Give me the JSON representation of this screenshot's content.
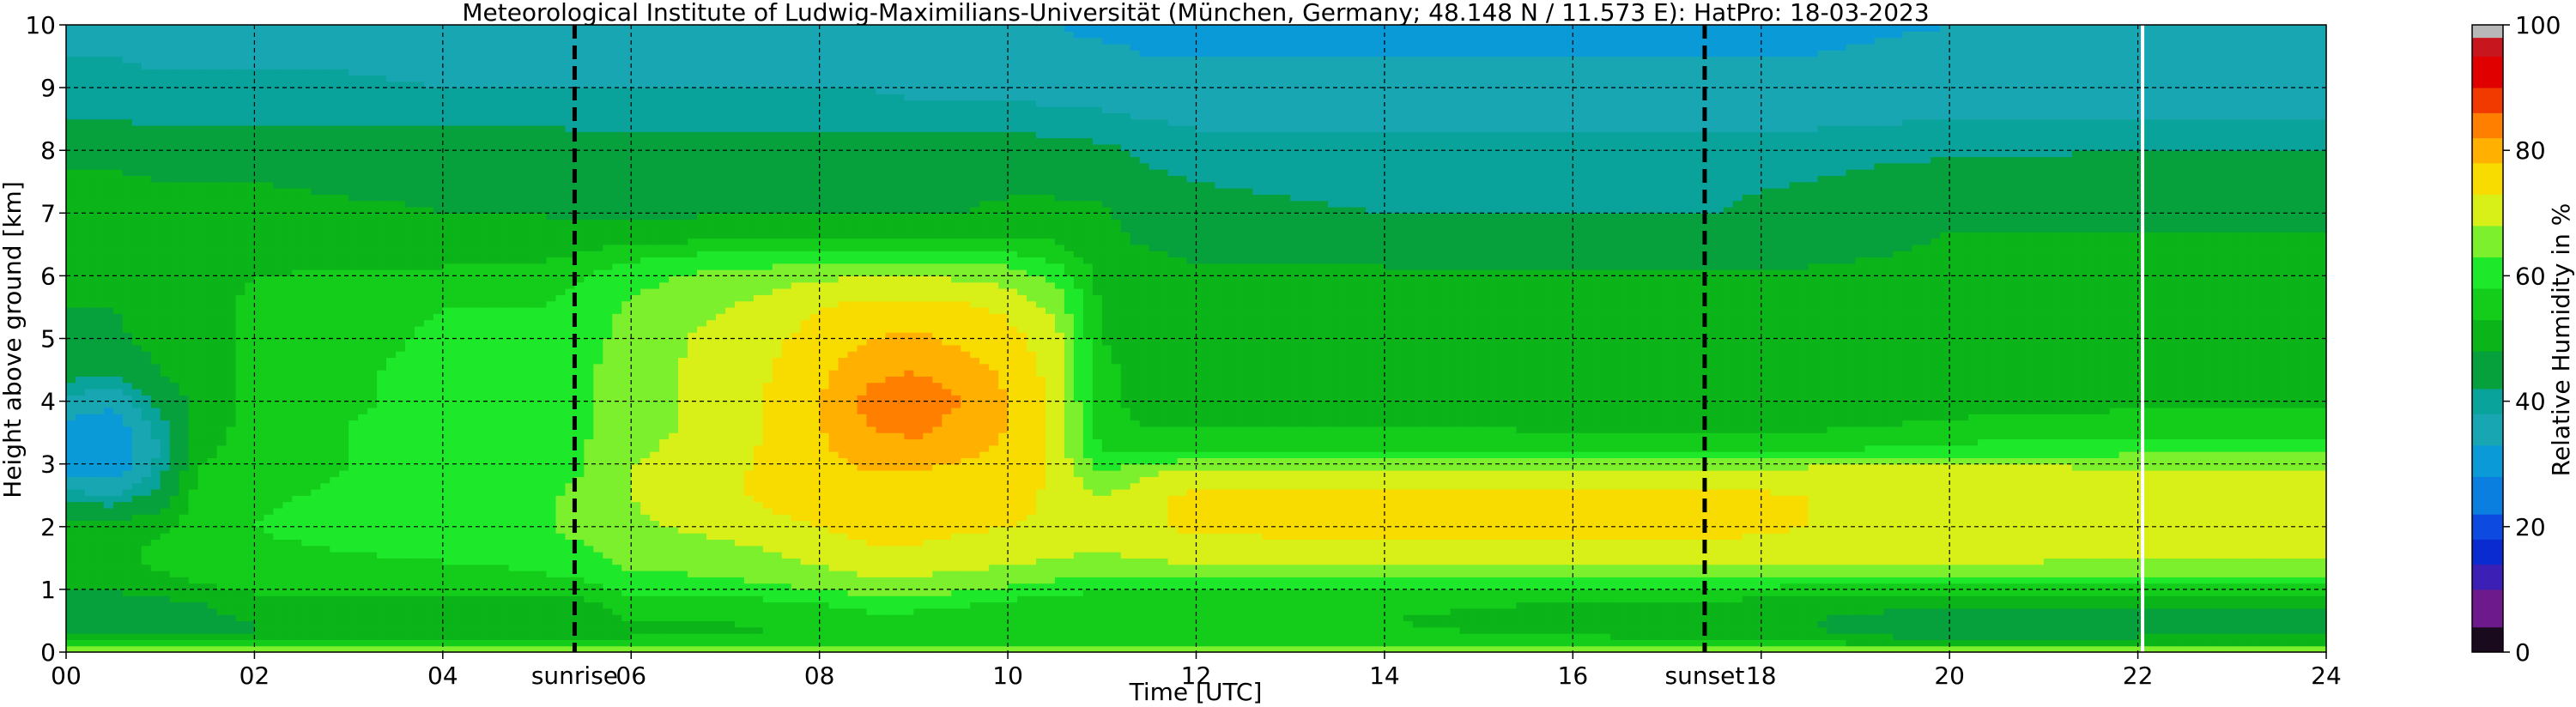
{
  "chart_data": {
    "type": "heatmap",
    "title": "Meteorological Institute of Ludwig-Maximilians-Universität (München, Germany; 48.148 N / 11.573 E):    HatPro: 18-03-2023",
    "xlabel": "Time [UTC]",
    "ylabel": "Height above ground [km]",
    "colorbar_label": "Relative Humidity in %",
    "xlim": [
      0,
      24
    ],
    "ylim": [
      0,
      10
    ],
    "zlim": [
      0,
      100
    ],
    "x_ticks": [
      0,
      2,
      4,
      6,
      8,
      10,
      12,
      14,
      16,
      18,
      20,
      22,
      24
    ],
    "x_tick_labels": [
      "00",
      "02",
      "04",
      "06",
      "08",
      "10",
      "12",
      "14",
      "16",
      "18",
      "20",
      "22",
      "24"
    ],
    "y_ticks": [
      0,
      1,
      2,
      3,
      4,
      5,
      6,
      7,
      8,
      9,
      10
    ],
    "y_tick_labels": [
      "0",
      "1",
      "2",
      "3",
      "4",
      "5",
      "6",
      "7",
      "8",
      "9",
      "10"
    ],
    "colorbar_ticks": [
      0,
      20,
      40,
      60,
      80,
      100
    ],
    "colorbar_tick_labels": [
      "0",
      "20",
      "40",
      "60",
      "80",
      "100"
    ],
    "grid": true,
    "events": [
      {
        "label": "sunrise",
        "time": 5.4
      },
      {
        "label": "sunset",
        "time": 17.4
      }
    ],
    "data_gap_time": 22.05,
    "colormap": [
      {
        "from": 0,
        "to": 4,
        "color": "#1a0a1e"
      },
      {
        "from": 4,
        "to": 10,
        "color": "#6c1a8c"
      },
      {
        "from": 10,
        "to": 14,
        "color": "#3c1fb4"
      },
      {
        "from": 14,
        "to": 18,
        "color": "#0a2bd0"
      },
      {
        "from": 18,
        "to": 22,
        "color": "#0d4ae0"
      },
      {
        "from": 22,
        "to": 28,
        "color": "#0b7fe0"
      },
      {
        "from": 28,
        "to": 33,
        "color": "#0a9ad8"
      },
      {
        "from": 33,
        "to": 38,
        "color": "#18a6b2"
      },
      {
        "from": 38,
        "to": 42,
        "color": "#0aa39b"
      },
      {
        "from": 42,
        "to": 48,
        "color": "#06a03c"
      },
      {
        "from": 48,
        "to": 53,
        "color": "#0bb419"
      },
      {
        "from": 53,
        "to": 58,
        "color": "#14cc1a"
      },
      {
        "from": 58,
        "to": 63,
        "color": "#1ee82a"
      },
      {
        "from": 63,
        "to": 68,
        "color": "#7cf02c"
      },
      {
        "from": 68,
        "to": 73,
        "color": "#d8f018"
      },
      {
        "from": 73,
        "to": 78,
        "color": "#f8dc00"
      },
      {
        "from": 78,
        "to": 82,
        "color": "#ffb000"
      },
      {
        "from": 82,
        "to": 86,
        "color": "#ff7f00"
      },
      {
        "from": 86,
        "to": 90,
        "color": "#f03a00"
      },
      {
        "from": 90,
        "to": 95,
        "color": "#e00000"
      },
      {
        "from": 95,
        "to": 98,
        "color": "#c8161e"
      },
      {
        "from": 98,
        "to": 100,
        "color": "#b8b8b8"
      }
    ],
    "rh_profiles": {
      "heights_km": [
        0,
        0.1,
        0.3,
        0.5,
        0.8,
        1.0,
        1.3,
        1.6,
        2.0,
        2.5,
        2.9,
        3.2,
        3.6,
        4.0,
        4.5,
        5.0,
        5.5,
        6.0,
        6.3,
        6.7,
        7.0,
        7.5,
        8.0,
        8.5,
        9.0,
        9.5,
        10.0
      ],
      "times_h": [
        0,
        0.5,
        1.0,
        1.4,
        2,
        3,
        4,
        5,
        5.5,
        6,
        7,
        7.5,
        8,
        8.5,
        9,
        9.5,
        10,
        10.5,
        11,
        11.5,
        12,
        14,
        16,
        17.5,
        18.5,
        20,
        22,
        24
      ],
      "rh_percent": [
        [
          74,
          55,
          47,
          45,
          46,
          48,
          52,
          52,
          50,
          40,
          32,
          30,
          32,
          36,
          45,
          48,
          48,
          50,
          51,
          51,
          51,
          49,
          46,
          42,
          40,
          38,
          36
        ],
        [
          74,
          55,
          47,
          45,
          46,
          48,
          52,
          52,
          50,
          38,
          30,
          28,
          30,
          34,
          44,
          47,
          48,
          50,
          51,
          51,
          51,
          49,
          46,
          42,
          40,
          38,
          36
        ],
        [
          74,
          55,
          47,
          46,
          47,
          50,
          53,
          54,
          52,
          44,
          40,
          38,
          40,
          44,
          48,
          50,
          50,
          51,
          51,
          51,
          50,
          48,
          45,
          41,
          39,
          37,
          35
        ],
        [
          74,
          55,
          47,
          47,
          48,
          52,
          55,
          56,
          56,
          55,
          53,
          52,
          50,
          50,
          51,
          51,
          51,
          51,
          51,
          51,
          50,
          48,
          45,
          41,
          39,
          37,
          35
        ],
        [
          74,
          55,
          48,
          48,
          50,
          54,
          56,
          57,
          58,
          57,
          56,
          55,
          55,
          54,
          54,
          54,
          54,
          53,
          51,
          50,
          50,
          48,
          45,
          41,
          39,
          37,
          35
        ],
        [
          74,
          55,
          48,
          48,
          50,
          54,
          56,
          58,
          60,
          59,
          58,
          58,
          58,
          57,
          57,
          56,
          56,
          54,
          51,
          49,
          49,
          47,
          45,
          41,
          39,
          37,
          35
        ],
        [
          74,
          55,
          48,
          48,
          50,
          55,
          57,
          59,
          61,
          62,
          61,
          61,
          61,
          60,
          60,
          59,
          58,
          55,
          51,
          49,
          48,
          47,
          45,
          41,
          38,
          36,
          35
        ],
        [
          74,
          55,
          48,
          49,
          51,
          55,
          58,
          60,
          62,
          62,
          61,
          61,
          60,
          60,
          60,
          59,
          58,
          55,
          52,
          49,
          48,
          46,
          45,
          41,
          38,
          36,
          35
        ],
        [
          74,
          56,
          50,
          50,
          52,
          56,
          60,
          62,
          65,
          64,
          63,
          63,
          62,
          62,
          62,
          61,
          60,
          58,
          54,
          49,
          47,
          46,
          44,
          41,
          38,
          36,
          35
        ],
        [
          74,
          56,
          52,
          53,
          56,
          60,
          63,
          65,
          67,
          68,
          68,
          67,
          66,
          66,
          66,
          65,
          64,
          61,
          57,
          49,
          47,
          46,
          44,
          40,
          38,
          36,
          34
        ],
        [
          74,
          56,
          52,
          53,
          56,
          60,
          64,
          66,
          70,
          72,
          72,
          71,
          70,
          70,
          70,
          70,
          68,
          65,
          60,
          50,
          48,
          46,
          44,
          40,
          38,
          36,
          34
        ],
        [
          74,
          57,
          53,
          54,
          57,
          62,
          66,
          68,
          72,
          74,
          74,
          74,
          74,
          74,
          73,
          72,
          70,
          66,
          60,
          50,
          48,
          47,
          44,
          40,
          38,
          36,
          34
        ],
        [
          74,
          58,
          54,
          55,
          58,
          63,
          67,
          70,
          73,
          75,
          76,
          77,
          78,
          78,
          77,
          75,
          73,
          67,
          60,
          50,
          48,
          47,
          45,
          40,
          38,
          35,
          34
        ],
        [
          74,
          58,
          55,
          56,
          60,
          65,
          69,
          72,
          75,
          77,
          78,
          80,
          82,
          83,
          81,
          78,
          75,
          68,
          60,
          50,
          48,
          47,
          45,
          40,
          38,
          35,
          33
        ],
        [
          74,
          58,
          55,
          56,
          60,
          65,
          69,
          72,
          75,
          77,
          78,
          81,
          83,
          84,
          82,
          79,
          75,
          68,
          60,
          50,
          48,
          47,
          45,
          40,
          37,
          35,
          33
        ],
        [
          74,
          57,
          54,
          55,
          59,
          64,
          68,
          71,
          74,
          76,
          77,
          79,
          81,
          82,
          80,
          77,
          74,
          67,
          60,
          50,
          48,
          47,
          45,
          40,
          37,
          35,
          33
        ],
        [
          74,
          57,
          53,
          54,
          57,
          62,
          67,
          70,
          73,
          75,
          76,
          77,
          78,
          78,
          77,
          75,
          72,
          66,
          60,
          51,
          49,
          47,
          45,
          40,
          37,
          35,
          33
        ],
        [
          74,
          57,
          53,
          54,
          56,
          60,
          66,
          69,
          72,
          72,
          72,
          72,
          72,
          72,
          71,
          70,
          67,
          62,
          56,
          51,
          49,
          47,
          44,
          39,
          36,
          34,
          33
        ],
        [
          74,
          57,
          53,
          53,
          54,
          58,
          64,
          68,
          70,
          68,
          62,
          58,
          55,
          54,
          54,
          53,
          52,
          51,
          50,
          50,
          49,
          46,
          43,
          39,
          36,
          34,
          32
        ],
        [
          74,
          58,
          54,
          54,
          55,
          58,
          65,
          70,
          72,
          72,
          67,
          57,
          53,
          51,
          51,
          51,
          51,
          51,
          49,
          46,
          45,
          43,
          41,
          38,
          35,
          33,
          32
        ],
        [
          74,
          58,
          55,
          54,
          55,
          59,
          66,
          71,
          74,
          74,
          70,
          58,
          53,
          51,
          51,
          51,
          51,
          50,
          47,
          44,
          43,
          42,
          40,
          37,
          35,
          33,
          32
        ],
        [
          74,
          57,
          54,
          53,
          54,
          58,
          67,
          72,
          74,
          74,
          70,
          58,
          53,
          51,
          51,
          51,
          51,
          50,
          46,
          43,
          42,
          41,
          40,
          37,
          35,
          33,
          32
        ],
        [
          74,
          57,
          52,
          51,
          53,
          57,
          67,
          72,
          74,
          74,
          70,
          58,
          52,
          50,
          50,
          50,
          50,
          49,
          46,
          43,
          42,
          41,
          40,
          37,
          35,
          33,
          32
        ],
        [
          74,
          56,
          51,
          50,
          52,
          57,
          67,
          72,
          74,
          74,
          70,
          58,
          52,
          50,
          50,
          50,
          50,
          49,
          46,
          43,
          42,
          41,
          40,
          37,
          35,
          33,
          32
        ],
        [
          74,
          55,
          49,
          48,
          51,
          56,
          66,
          71,
          73,
          73,
          70,
          58,
          52,
          50,
          50,
          50,
          50,
          49,
          47,
          45,
          44,
          42,
          40,
          37,
          35,
          33,
          32
        ],
        [
          74,
          54,
          44,
          43,
          50,
          56,
          66,
          71,
          73,
          72,
          70,
          60,
          54,
          51,
          50,
          50,
          50,
          50,
          49,
          48,
          47,
          45,
          41,
          38,
          36,
          34,
          33
        ],
        [
          74,
          54,
          46,
          45,
          50,
          56,
          65,
          70,
          72,
          72,
          69,
          62,
          55,
          52,
          51,
          50,
          50,
          50,
          49,
          48,
          47,
          45,
          42,
          38,
          36,
          34,
          33
        ],
        [
          74,
          54,
          46,
          45,
          50,
          56,
          65,
          70,
          72,
          72,
          69,
          62,
          55,
          52,
          51,
          50,
          50,
          50,
          49,
          48,
          47,
          45,
          42,
          38,
          36,
          34,
          33
        ]
      ]
    }
  }
}
